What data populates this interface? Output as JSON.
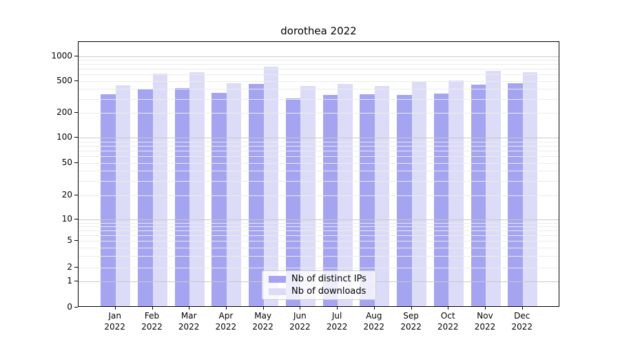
{
  "chart_data": {
    "type": "bar",
    "title": "dorothea 2022",
    "categories": [
      "Jan",
      "Feb",
      "Mar",
      "Apr",
      "May",
      "Jun",
      "Jul",
      "Aug",
      "Sep",
      "Oct",
      "Nov",
      "Dec"
    ],
    "category_year": "2022",
    "series": [
      {
        "name": "Nb of distinct IPs",
        "color": "#a4a4f1",
        "values": [
          333,
          390,
          397,
          344,
          443,
          297,
          327,
          333,
          327,
          342,
          438,
          457
        ]
      },
      {
        "name": "Nb of downloads",
        "color": "#dcdcf8",
        "values": [
          430,
          600,
          615,
          455,
          719,
          423,
          443,
          417,
          482,
          497,
          645,
          625
        ]
      }
    ],
    "yscale": "symlog",
    "y_tick_labels": [
      "0",
      "1",
      "2",
      "5",
      "10",
      "20",
      "50",
      "100",
      "200",
      "500",
      "1000"
    ],
    "y_tick_values": [
      0,
      1,
      2,
      5,
      10,
      20,
      50,
      100,
      200,
      500,
      1000
    ],
    "ylim": [
      0,
      1450
    ],
    "xlabel": "",
    "ylabel": "",
    "grid": "both",
    "legend_position": "lower center",
    "colors": {
      "major_grid": "#c8c8c8",
      "minor_grid": "#ebebeb",
      "axis": "#000000"
    }
  }
}
